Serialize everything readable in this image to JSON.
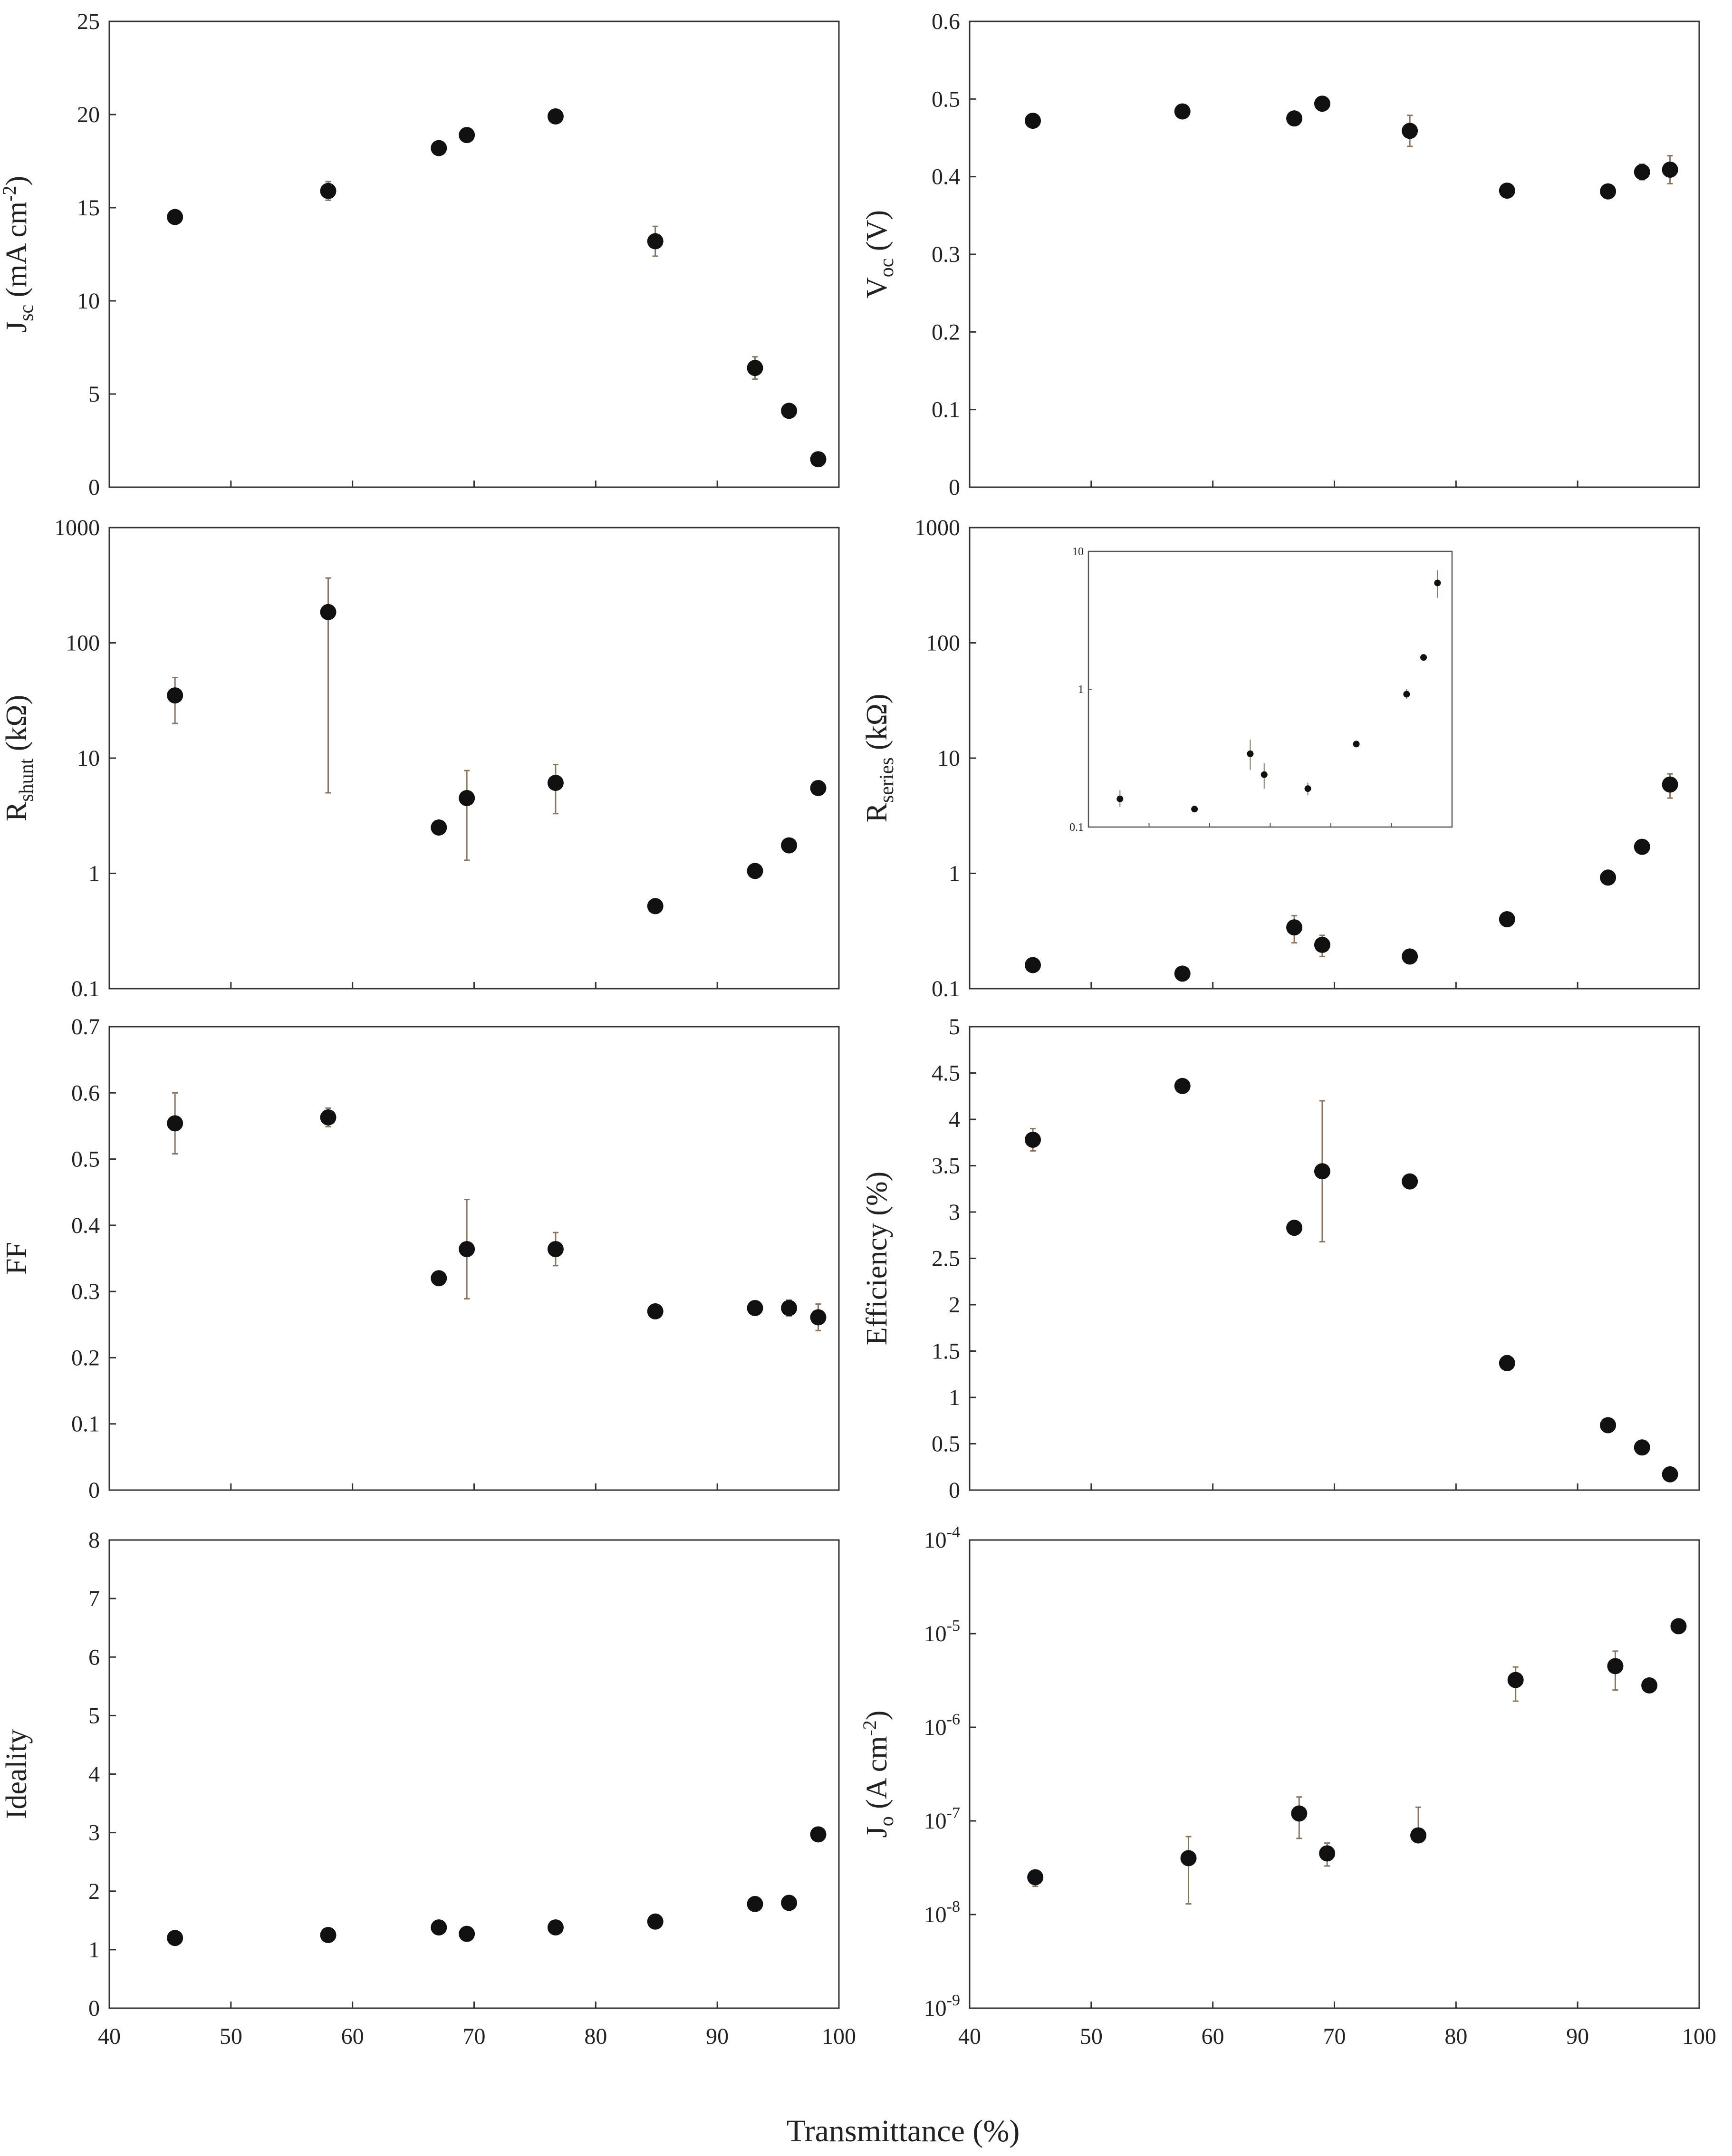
{
  "x_axis": {
    "label": "Transmittance (%)",
    "ticks": [
      "40",
      "50",
      "60",
      "70",
      "80",
      "90",
      "100"
    ]
  },
  "colors": {
    "marker": "#111111",
    "errorbar": "#8a7560",
    "frame": "#333333"
  },
  "chart_data": [
    {
      "type": "scatter",
      "ylabel": "J_sc (mA cm^-2)",
      "ylabel_parts": {
        "main": "J",
        "sub": "sc",
        "unit": " (mA cm",
        "sup": "-2",
        "end": ")"
      },
      "xlim": [
        40,
        100
      ],
      "ylim": [
        0,
        25
      ],
      "yticks": [
        "0",
        "5",
        "10",
        "15",
        "20",
        "25"
      ],
      "y_scale": "linear",
      "points": [
        {
          "x": 45.4,
          "y": 14.5,
          "err": 0.3
        },
        {
          "x": 58.0,
          "y": 15.9,
          "err": 0.5
        },
        {
          "x": 67.1,
          "y": 18.2,
          "err": 0.2
        },
        {
          "x": 69.4,
          "y": 18.9,
          "err": 0.2
        },
        {
          "x": 76.7,
          "y": 19.9,
          "err": 0.2
        },
        {
          "x": 84.9,
          "y": 13.2,
          "err": 0.8
        },
        {
          "x": 93.1,
          "y": 6.4,
          "err": 0.6
        },
        {
          "x": 95.9,
          "y": 4.1,
          "err": 0.2
        },
        {
          "x": 98.3,
          "y": 1.5,
          "err": 0.2
        }
      ]
    },
    {
      "type": "scatter",
      "ylabel": "V_oc (V)",
      "ylabel_parts": {
        "main": "V",
        "sub": "oc",
        "unit": " (V)",
        "sup": "",
        "end": ""
      },
      "xlim": [
        40,
        100
      ],
      "ylim": [
        0,
        0.6
      ],
      "yticks": [
        "0",
        "0.1",
        "0.2",
        "0.3",
        "0.4",
        "0.5",
        "0.6"
      ],
      "y_scale": "linear",
      "points": [
        {
          "x": 45.2,
          "y": 0.472,
          "err": 0.005
        },
        {
          "x": 57.5,
          "y": 0.484,
          "err": 0.005
        },
        {
          "x": 66.7,
          "y": 0.475,
          "err": 0.005
        },
        {
          "x": 69.0,
          "y": 0.494,
          "err": 0.005
        },
        {
          "x": 76.2,
          "y": 0.459,
          "err": 0.02
        },
        {
          "x": 84.2,
          "y": 0.382,
          "err": 0.005
        },
        {
          "x": 92.5,
          "y": 0.381,
          "err": 0.005
        },
        {
          "x": 95.3,
          "y": 0.406,
          "err": 0.01
        },
        {
          "x": 97.6,
          "y": 0.409,
          "err": 0.018
        }
      ]
    },
    {
      "type": "scatter",
      "ylabel": "R_shunt (kΩ)",
      "ylabel_parts": {
        "main": "R",
        "sub": "shunt",
        "unit": " (kΩ)",
        "sup": "",
        "end": ""
      },
      "xlim": [
        40,
        100
      ],
      "ylim": [
        0.1,
        1000
      ],
      "yticks": [
        "0.1",
        "1",
        "10",
        "100",
        "1000"
      ],
      "y_scale": "log",
      "points": [
        {
          "x": 45.4,
          "y": 35,
          "lo": 20,
          "hi": 50
        },
        {
          "x": 58.0,
          "y": 185,
          "lo": 5,
          "hi": 365
        },
        {
          "x": 67.1,
          "y": 2.5,
          "lo": 2.5,
          "hi": 2.5
        },
        {
          "x": 69.4,
          "y": 4.5,
          "lo": 1.3,
          "hi": 7.8
        },
        {
          "x": 76.7,
          "y": 6.1,
          "lo": 3.3,
          "hi": 8.8
        },
        {
          "x": 84.9,
          "y": 0.52,
          "lo": 0.52,
          "hi": 0.52
        },
        {
          "x": 93.1,
          "y": 1.05,
          "lo": 1.05,
          "hi": 1.05
        },
        {
          "x": 95.9,
          "y": 1.75,
          "lo": 1.75,
          "hi": 1.75
        },
        {
          "x": 98.3,
          "y": 5.5,
          "lo": 5.5,
          "hi": 5.5
        }
      ]
    },
    {
      "type": "scatter",
      "ylabel": "R_series (kΩ)",
      "ylabel_parts": {
        "main": "R",
        "sub": "series",
        "unit": " (kΩ)",
        "sup": "",
        "end": ""
      },
      "xlim": [
        40,
        100
      ],
      "ylim": [
        0.1,
        1000
      ],
      "yticks": [
        "0.1",
        "1",
        "10",
        "100",
        "1000"
      ],
      "y_scale": "log",
      "points": [
        {
          "x": 45.2,
          "y": 0.16,
          "lo": 0.15,
          "hi": 0.175
        },
        {
          "x": 57.5,
          "y": 0.135,
          "lo": 0.13,
          "hi": 0.14
        },
        {
          "x": 66.7,
          "y": 0.34,
          "lo": 0.25,
          "hi": 0.43
        },
        {
          "x": 69.0,
          "y": 0.24,
          "lo": 0.19,
          "hi": 0.29
        },
        {
          "x": 76.2,
          "y": 0.19,
          "lo": 0.175,
          "hi": 0.205
        },
        {
          "x": 84.2,
          "y": 0.4,
          "lo": 0.4,
          "hi": 0.4
        },
        {
          "x": 92.5,
          "y": 0.92,
          "lo": 0.92,
          "hi": 0.92
        },
        {
          "x": 95.3,
          "y": 1.7,
          "lo": 1.7,
          "hi": 1.7
        },
        {
          "x": 97.6,
          "y": 5.9,
          "lo": 4.5,
          "hi": 7.3
        }
      ],
      "inset": {
        "yticks": [
          "0.1",
          "1",
          "10"
        ],
        "ylim": [
          0.1,
          10
        ],
        "xlim": [
          40,
          100
        ],
        "points": [
          {
            "x": 45.2,
            "y": 0.16,
            "lo": 0.14,
            "hi": 0.185
          },
          {
            "x": 57.5,
            "y": 0.135,
            "lo": 0.13,
            "hi": 0.14
          },
          {
            "x": 66.7,
            "y": 0.34,
            "lo": 0.26,
            "hi": 0.43
          },
          {
            "x": 69.0,
            "y": 0.24,
            "lo": 0.19,
            "hi": 0.29
          },
          {
            "x": 76.2,
            "y": 0.19,
            "lo": 0.17,
            "hi": 0.21
          },
          {
            "x": 84.2,
            "y": 0.4,
            "lo": 0.4,
            "hi": 0.4
          },
          {
            "x": 92.5,
            "y": 0.92,
            "lo": 0.85,
            "hi": 1.0
          },
          {
            "x": 95.3,
            "y": 1.7,
            "lo": 1.7,
            "hi": 1.7
          },
          {
            "x": 97.6,
            "y": 5.9,
            "lo": 4.6,
            "hi": 7.3
          }
        ]
      }
    },
    {
      "type": "scatter",
      "ylabel": "FF",
      "ylabel_parts": {
        "main": "FF",
        "sub": "",
        "unit": "",
        "sup": "",
        "end": ""
      },
      "xlim": [
        40,
        100
      ],
      "ylim": [
        0,
        0.7
      ],
      "yticks": [
        "0",
        "0.1",
        "0.2",
        "0.3",
        "0.4",
        "0.5",
        "0.6",
        "0.7"
      ],
      "y_scale": "linear",
      "points": [
        {
          "x": 45.4,
          "y": 0.554,
          "err": 0.046
        },
        {
          "x": 58.0,
          "y": 0.563,
          "err": 0.014
        },
        {
          "x": 67.1,
          "y": 0.32,
          "err": 0.005
        },
        {
          "x": 69.4,
          "y": 0.364,
          "err": 0.075
        },
        {
          "x": 76.7,
          "y": 0.364,
          "err": 0.025
        },
        {
          "x": 84.9,
          "y": 0.27,
          "err": 0.005
        },
        {
          "x": 93.1,
          "y": 0.275,
          "err": 0.005
        },
        {
          "x": 95.9,
          "y": 0.275,
          "err": 0.012
        },
        {
          "x": 98.3,
          "y": 0.261,
          "err": 0.02
        }
      ]
    },
    {
      "type": "scatter",
      "ylabel": "Efficiency (%)",
      "ylabel_parts": {
        "main": "Efficiency (%)",
        "sub": "",
        "unit": "",
        "sup": "",
        "end": ""
      },
      "xlim": [
        40,
        100
      ],
      "ylim": [
        0,
        5
      ],
      "yticks": [
        "0",
        "0.5",
        "1",
        "1.5",
        "2",
        "2.5",
        "3",
        "3.5",
        "4",
        "4.5",
        "5"
      ],
      "y_scale": "linear",
      "points": [
        {
          "x": 45.2,
          "y": 3.78,
          "err": 0.12
        },
        {
          "x": 57.5,
          "y": 4.36,
          "err": 0.04
        },
        {
          "x": 66.7,
          "y": 2.83,
          "err": 0.04
        },
        {
          "x": 69.0,
          "y": 3.44,
          "err": 0.76
        },
        {
          "x": 76.2,
          "y": 3.33,
          "err": 0.07
        },
        {
          "x": 84.2,
          "y": 1.37,
          "err": 0.08
        },
        {
          "x": 92.5,
          "y": 0.7,
          "err": 0.04
        },
        {
          "x": 95.3,
          "y": 0.46,
          "err": 0.02
        },
        {
          "x": 97.6,
          "y": 0.17,
          "err": 0.02
        }
      ]
    },
    {
      "type": "scatter",
      "ylabel": "Ideality",
      "ylabel_parts": {
        "main": "Ideality",
        "sub": "",
        "unit": "",
        "sup": "",
        "end": ""
      },
      "xlim": [
        40,
        100
      ],
      "ylim": [
        0,
        8
      ],
      "yticks": [
        "0",
        "1",
        "2",
        "3",
        "4",
        "5",
        "6",
        "7",
        "8"
      ],
      "y_scale": "linear",
      "points": [
        {
          "x": 45.4,
          "y": 1.2,
          "err": 0.03
        },
        {
          "x": 58.0,
          "y": 1.25,
          "err": 0.03
        },
        {
          "x": 67.1,
          "y": 1.38,
          "err": 0.03
        },
        {
          "x": 69.4,
          "y": 1.27,
          "err": 0.03
        },
        {
          "x": 76.7,
          "y": 1.38,
          "err": 0.03
        },
        {
          "x": 84.9,
          "y": 1.48,
          "err": 0.03
        },
        {
          "x": 93.1,
          "y": 1.78,
          "err": 0.12
        },
        {
          "x": 95.9,
          "y": 1.8,
          "err": 0.03
        },
        {
          "x": 98.3,
          "y": 2.97,
          "err": 0.03
        }
      ]
    },
    {
      "type": "scatter",
      "ylabel": "J_o (A cm^-2)",
      "ylabel_parts": {
        "main": "J",
        "sub": "o",
        "unit": " (A cm",
        "sup": "-2",
        "end": ")"
      },
      "xlim": [
        40,
        100
      ],
      "ylim": [
        1e-09,
        0.0001
      ],
      "yticks": [
        {
          "base": "10",
          "exp": "-9"
        },
        {
          "base": "10",
          "exp": "-8"
        },
        {
          "base": "10",
          "exp": "-7"
        },
        {
          "base": "10",
          "exp": "-6"
        },
        {
          "base": "10",
          "exp": "-5"
        },
        {
          "base": "10",
          "exp": "-4"
        }
      ],
      "y_scale": "log",
      "points": [
        {
          "x": 45.4,
          "y": 2.5e-08,
          "lo": 2e-08,
          "hi": 2.8e-08
        },
        {
          "x": 58.0,
          "y": 4e-08,
          "lo": 1.3e-08,
          "hi": 6.8e-08
        },
        {
          "x": 67.1,
          "y": 1.2e-07,
          "lo": 6.5e-08,
          "hi": 1.8e-07
        },
        {
          "x": 69.4,
          "y": 4.5e-08,
          "lo": 3.3e-08,
          "hi": 5.8e-08
        },
        {
          "x": 76.9,
          "y": 7e-08,
          "lo": 7e-08,
          "hi": 1.4e-07
        },
        {
          "x": 84.9,
          "y": 3.2e-06,
          "lo": 1.9e-06,
          "hi": 4.4e-06
        },
        {
          "x": 93.1,
          "y": 4.5e-06,
          "lo": 2.5e-06,
          "hi": 6.5e-06
        },
        {
          "x": 95.9,
          "y": 2.8e-06,
          "lo": 2.8e-06,
          "hi": 2.8e-06
        },
        {
          "x": 98.3,
          "y": 1.2e-05,
          "lo": 1.2e-05,
          "hi": 1.2e-05
        }
      ]
    }
  ]
}
